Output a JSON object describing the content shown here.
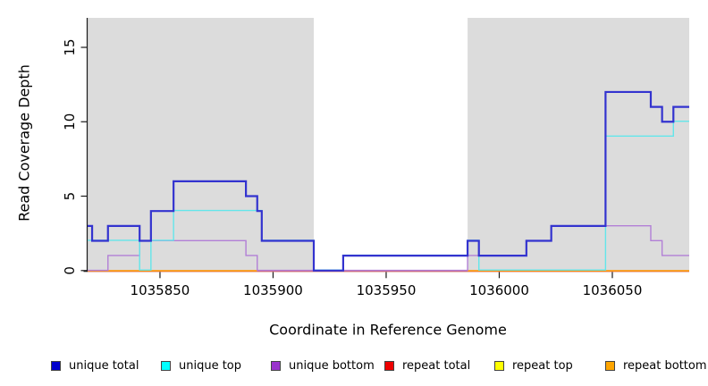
{
  "chart_data": {
    "type": "line",
    "subtype": "step-coverage",
    "title": "",
    "xlabel": "Coordinate in Reference Genome",
    "ylabel": "Read Coverage Depth",
    "xlim": [
      1035818,
      1036084
    ],
    "ylim": [
      0,
      17
    ],
    "x_ticks": [
      "1035850",
      "1035900",
      "1035950",
      "1036000",
      "1036050"
    ],
    "x_tick_values": [
      1035850,
      1035900,
      1035950,
      1036000,
      1036050
    ],
    "y_ticks": [
      "0",
      "5",
      "10",
      "15"
    ],
    "y_tick_values": [
      0,
      5,
      10,
      15
    ],
    "grid": "off",
    "legend_position": "bottom",
    "background_color": "#ffffff",
    "shaded_region_color": "#dcdcdc",
    "shaded_regions": [
      {
        "x0": 1035818,
        "x1": 1035918
      },
      {
        "x0": 1035986,
        "x1": 1036084
      }
    ],
    "series": [
      {
        "name": "unique total",
        "legend_color": "#0000cc",
        "line_color": "#3333cf",
        "line_width": 2.2,
        "zero_dy": 0,
        "steps": [
          [
            1035818,
            3
          ],
          [
            1035820,
            2
          ],
          [
            1035827,
            3
          ],
          [
            1035841,
            2
          ],
          [
            1035846,
            4
          ],
          [
            1035856,
            6
          ],
          [
            1035888,
            5
          ],
          [
            1035893,
            4
          ],
          [
            1035895,
            2
          ],
          [
            1035918,
            0
          ],
          [
            1035931,
            1
          ],
          [
            1035986,
            2
          ],
          [
            1035991,
            1
          ],
          [
            1036012,
            2
          ],
          [
            1036023,
            3
          ],
          [
            1036047,
            12
          ],
          [
            1036067,
            11
          ],
          [
            1036072,
            10
          ],
          [
            1036077,
            11
          ]
        ],
        "x_end": 1036084
      },
      {
        "name": "unique top",
        "legend_color": "#00ffff",
        "line_color": "#63e6ea",
        "line_width": 1.4,
        "zero_dy": -0.6,
        "steps": [
          [
            1035818,
            2
          ],
          [
            1035841,
            0
          ],
          [
            1035846,
            2
          ],
          [
            1035856,
            4
          ],
          [
            1035895,
            2
          ],
          [
            1035918,
            0
          ],
          [
            1035931,
            1
          ],
          [
            1035986,
            2
          ],
          [
            1035991,
            0
          ],
          [
            1036047,
            9
          ],
          [
            1036077,
            10
          ]
        ],
        "x_end": 1036084
      },
      {
        "name": "unique bottom",
        "legend_color": "#9932cc",
        "line_color": "#b27fd6",
        "line_width": 1.4,
        "zero_dy": -0.2,
        "steps": [
          [
            1035818,
            0
          ],
          [
            1035827,
            1
          ],
          [
            1035841,
            2
          ],
          [
            1035888,
            1
          ],
          [
            1035893,
            0
          ],
          [
            1035986,
            1
          ],
          [
            1036012,
            2
          ],
          [
            1036023,
            3
          ],
          [
            1036067,
            2
          ],
          [
            1036072,
            1
          ]
        ],
        "x_end": 1036084
      },
      {
        "name": "repeat total",
        "legend_color": "#ee0000",
        "line_color": "#cd607d",
        "line_width": 1.3,
        "zero_dy": 0.9,
        "steps": [
          [
            1035818,
            0
          ]
        ],
        "x_end": 1036084
      },
      {
        "name": "repeat top",
        "legend_color": "#ffff00",
        "line_color": "#ffff00",
        "line_width": 1.0,
        "zero_dy": 0.9,
        "steps": [
          [
            1035818,
            0
          ]
        ],
        "x_end": 1036084
      },
      {
        "name": "repeat bottom",
        "legend_color": "#ffa500",
        "line_color": "#ff9500",
        "line_width": 1.6,
        "zero_dy": 0.3,
        "segments": [
          [
            1035818,
            1035893
          ],
          [
            1035986,
            1036084
          ]
        ],
        "steps": [
          [
            1035818,
            0
          ]
        ],
        "x_end": 1036084
      }
    ],
    "draw_order": [
      "repeat top",
      "repeat total",
      "repeat bottom",
      "unique bottom",
      "unique top",
      "unique total"
    ],
    "legend": [
      {
        "label": "unique total",
        "color": "#0000cc"
      },
      {
        "label": "unique top",
        "color": "#00ffff"
      },
      {
        "label": "unique bottom",
        "color": "#9932cc"
      },
      {
        "label": "repeat total",
        "color": "#ee0000"
      },
      {
        "label": "repeat top",
        "color": "#ffff00"
      },
      {
        "label": "repeat bottom",
        "color": "#ffa500"
      }
    ]
  }
}
